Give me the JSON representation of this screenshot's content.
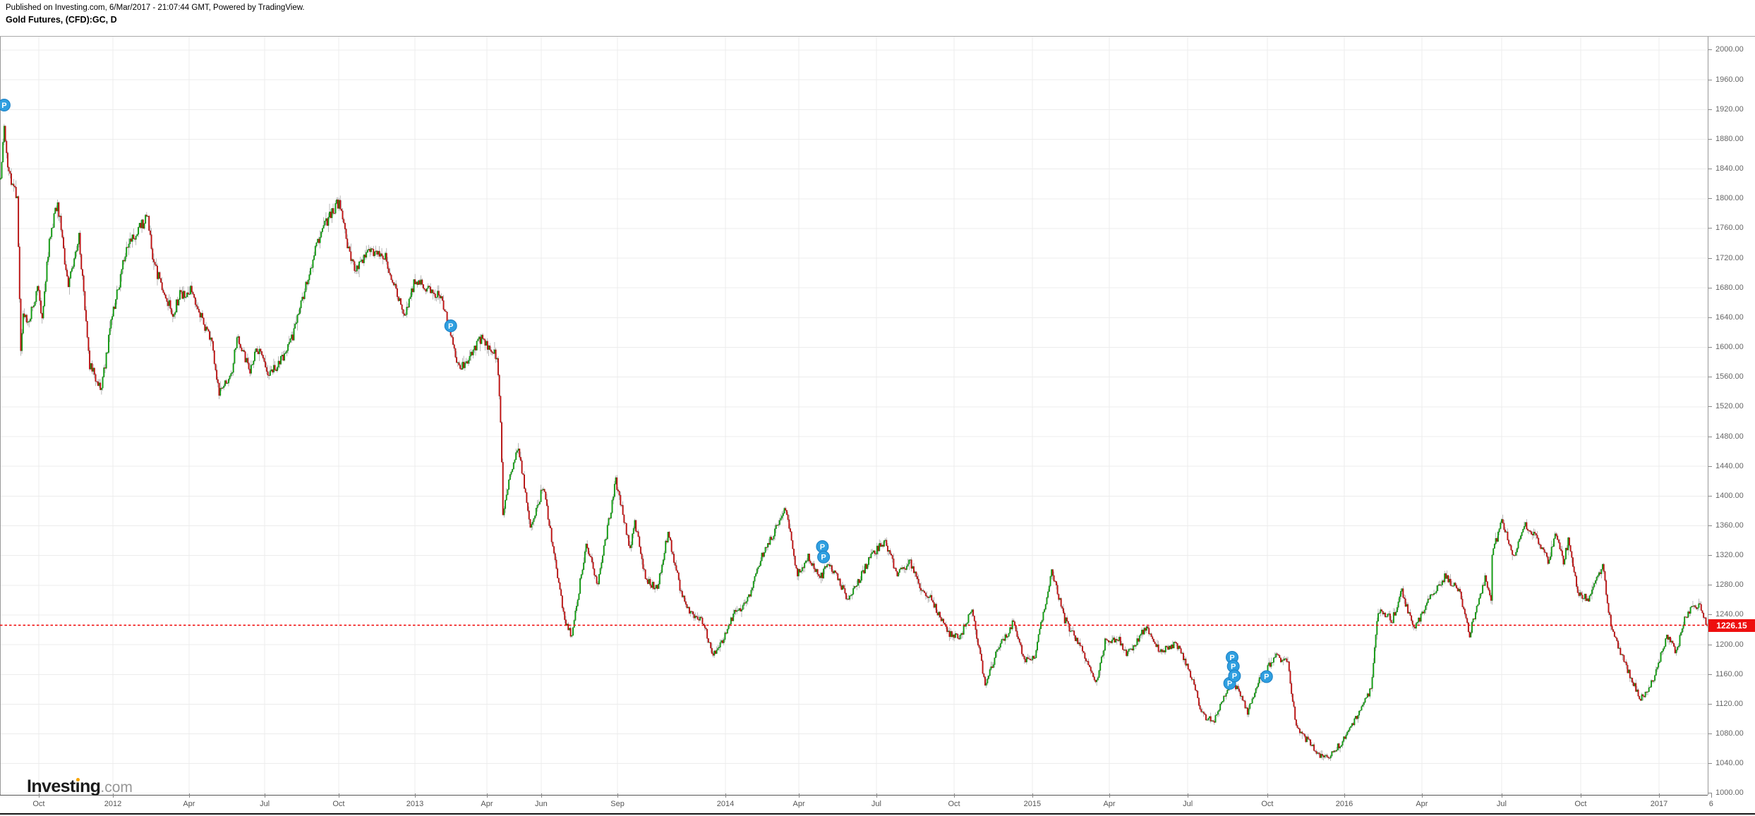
{
  "header": {
    "published_line": "Published on Investing.com, 6/Mar/2017 - 21:07:44 GMT, Powered by TradingView.",
    "instrument_line": "Gold Futures, (CFD):GC, D"
  },
  "logo": {
    "brand_part1": "Invest",
    "brand_i": "i",
    "brand_part2": "ng",
    "tld": ".com"
  },
  "colors": {
    "up": "#0fae0f",
    "up_border": "#0a6e0a",
    "down": "#d41111",
    "down_border": "#8a0b0b",
    "wick": "#999999",
    "grid": "#ececec",
    "plot_border": "#999999",
    "axis_text": "#666666",
    "last_price": "#f00000",
    "badge_bg": "#ee0f0f",
    "marker": "#2f9fe0",
    "marker_border": "#1a7fc4",
    "logo_dot": "#f7a400"
  },
  "chart_data": {
    "type": "candlestick",
    "title": "Gold Futures, (CFD):GC, D",
    "symbol": "(CFD):GC",
    "interval": "D",
    "legend_position": "none",
    "grid": true,
    "last_price": 1226.15,
    "last_price_label": "1226.15",
    "y_axis": {
      "min": 1000,
      "max": 2000,
      "step": 40,
      "plot_top_price": 2018,
      "plot_bottom_price": 998,
      "tick_labels": [
        "2000.00",
        "1960.00",
        "1920.00",
        "1880.00",
        "1840.00",
        "1800.00",
        "1760.00",
        "1720.00",
        "1680.00",
        "1640.00",
        "1600.00",
        "1560.00",
        "1520.00",
        "1480.00",
        "1440.00",
        "1400.00",
        "1360.00",
        "1320.00",
        "1280.00",
        "1240.00",
        "1200.00",
        "1160.00",
        "1120.00",
        "1080.00",
        "1040.00",
        "1000.00"
      ]
    },
    "time_range": {
      "start": "2011-09-01",
      "end": "2017-03-06"
    },
    "x_ticks": [
      {
        "label": "Oct",
        "x": 0.0227
      },
      {
        "label": "2012",
        "x": 0.0661
      },
      {
        "label": "Apr",
        "x": 0.1107
      },
      {
        "label": "Jul",
        "x": 0.155
      },
      {
        "label": "Oct",
        "x": 0.1983
      },
      {
        "label": "2013",
        "x": 0.243
      },
      {
        "label": "Apr",
        "x": 0.2851
      },
      {
        "label": "Jun",
        "x": 0.3169
      },
      {
        "label": "Sep",
        "x": 0.3616
      },
      {
        "label": "2014",
        "x": 0.4248
      },
      {
        "label": "Apr",
        "x": 0.4678
      },
      {
        "label": "Jul",
        "x": 0.5132
      },
      {
        "label": "Oct",
        "x": 0.5587
      },
      {
        "label": "2015",
        "x": 0.6045
      },
      {
        "label": "Apr",
        "x": 0.6496
      },
      {
        "label": "Jul",
        "x": 0.6955
      },
      {
        "label": "Oct",
        "x": 0.7421
      },
      {
        "label": "2016",
        "x": 0.7872
      },
      {
        "label": "Apr",
        "x": 0.8326
      },
      {
        "label": "Jul",
        "x": 0.8793
      },
      {
        "label": "Oct",
        "x": 0.9256
      },
      {
        "label": "2017",
        "x": 0.9715
      },
      {
        "label": "6",
        "x": 1.002
      }
    ],
    "price_path": [
      [
        "2011-09-01",
        1826
      ],
      [
        "2011-09-06",
        1900
      ],
      [
        "2011-09-08",
        1856
      ],
      [
        "2011-09-14",
        1822
      ],
      [
        "2011-09-21",
        1805
      ],
      [
        "2011-09-23",
        1660
      ],
      [
        "2011-09-26",
        1595
      ],
      [
        "2011-09-28",
        1650
      ],
      [
        "2011-10-04",
        1630
      ],
      [
        "2011-10-14",
        1680
      ],
      [
        "2011-10-20",
        1640
      ],
      [
        "2011-10-28",
        1745
      ],
      [
        "2011-11-08",
        1795
      ],
      [
        "2011-11-21",
        1680
      ],
      [
        "2011-12-02",
        1750
      ],
      [
        "2011-12-15",
        1575
      ],
      [
        "2011-12-29",
        1546
      ],
      [
        "2012-01-10",
        1632
      ],
      [
        "2012-01-27",
        1735
      ],
      [
        "2012-02-22",
        1776
      ],
      [
        "2012-02-29",
        1710
      ],
      [
        "2012-03-13",
        1676
      ],
      [
        "2012-03-22",
        1645
      ],
      [
        "2012-03-30",
        1670
      ],
      [
        "2012-04-12",
        1676
      ],
      [
        "2012-04-25",
        1640
      ],
      [
        "2012-05-08",
        1604
      ],
      [
        "2012-05-16",
        1540
      ],
      [
        "2012-05-31",
        1562
      ],
      [
        "2012-06-06",
        1620
      ],
      [
        "2012-06-21",
        1566
      ],
      [
        "2012-06-29",
        1600
      ],
      [
        "2012-07-12",
        1566
      ],
      [
        "2012-07-25",
        1576
      ],
      [
        "2012-08-10",
        1615
      ],
      [
        "2012-08-23",
        1670
      ],
      [
        "2012-09-07",
        1736
      ],
      [
        "2012-09-21",
        1775
      ],
      [
        "2012-10-04",
        1796
      ],
      [
        "2012-10-15",
        1736
      ],
      [
        "2012-10-24",
        1702
      ],
      [
        "2012-11-09",
        1732
      ],
      [
        "2012-11-28",
        1720
      ],
      [
        "2012-12-05",
        1694
      ],
      [
        "2012-12-20",
        1646
      ],
      [
        "2013-01-02",
        1690
      ],
      [
        "2013-01-17",
        1680
      ],
      [
        "2013-02-01",
        1665
      ],
      [
        "2013-02-15",
        1608
      ],
      [
        "2013-02-21",
        1578
      ],
      [
        "2013-03-01",
        1575
      ],
      [
        "2013-03-21",
        1614
      ],
      [
        "2013-04-09",
        1586
      ],
      [
        "2013-04-12",
        1500
      ],
      [
        "2013-04-16",
        1380
      ],
      [
        "2013-04-23",
        1420
      ],
      [
        "2013-05-03",
        1465
      ],
      [
        "2013-05-17",
        1360
      ],
      [
        "2013-06-03",
        1412
      ],
      [
        "2013-06-20",
        1285
      ],
      [
        "2013-06-27",
        1230
      ],
      [
        "2013-07-05",
        1213
      ],
      [
        "2013-07-23",
        1335
      ],
      [
        "2013-08-06",
        1282
      ],
      [
        "2013-08-27",
        1420
      ],
      [
        "2013-09-12",
        1330
      ],
      [
        "2013-09-18",
        1366
      ],
      [
        "2013-10-01",
        1288
      ],
      [
        "2013-10-15",
        1275
      ],
      [
        "2013-10-28",
        1352
      ],
      [
        "2013-11-12",
        1270
      ],
      [
        "2013-11-25",
        1240
      ],
      [
        "2013-12-06",
        1230
      ],
      [
        "2013-12-19",
        1188
      ],
      [
        "2013-12-31",
        1205
      ],
      [
        "2014-01-14",
        1245
      ],
      [
        "2014-01-28",
        1255
      ],
      [
        "2014-02-14",
        1320
      ],
      [
        "2014-03-14",
        1382
      ],
      [
        "2014-03-28",
        1294
      ],
      [
        "2014-04-10",
        1320
      ],
      [
        "2014-04-24",
        1290
      ],
      [
        "2014-05-06",
        1310
      ],
      [
        "2014-05-28",
        1260
      ],
      [
        "2014-06-24",
        1320
      ],
      [
        "2014-07-10",
        1340
      ],
      [
        "2014-07-24",
        1295
      ],
      [
        "2014-08-08",
        1310
      ],
      [
        "2014-08-21",
        1277
      ],
      [
        "2014-09-02",
        1265
      ],
      [
        "2014-09-22",
        1218
      ],
      [
        "2014-10-06",
        1207
      ],
      [
        "2014-10-21",
        1250
      ],
      [
        "2014-11-05",
        1145
      ],
      [
        "2014-11-21",
        1200
      ],
      [
        "2014-12-01",
        1212
      ],
      [
        "2014-12-09",
        1232
      ],
      [
        "2014-12-22",
        1178
      ],
      [
        "2015-01-02",
        1186
      ],
      [
        "2015-01-22",
        1300
      ],
      [
        "2015-02-06",
        1234
      ],
      [
        "2015-02-24",
        1200
      ],
      [
        "2015-03-17",
        1150
      ],
      [
        "2015-03-26",
        1205
      ],
      [
        "2015-04-10",
        1208
      ],
      [
        "2015-04-22",
        1187
      ],
      [
        "2015-05-14",
        1225
      ],
      [
        "2015-05-29",
        1190
      ],
      [
        "2015-06-18",
        1202
      ],
      [
        "2015-07-07",
        1155
      ],
      [
        "2015-07-20",
        1106
      ],
      [
        "2015-07-31",
        1096
      ],
      [
        "2015-08-12",
        1125
      ],
      [
        "2015-08-24",
        1155
      ],
      [
        "2015-09-10",
        1110
      ],
      [
        "2015-09-24",
        1154
      ],
      [
        "2015-10-14",
        1184
      ],
      [
        "2015-10-28",
        1176
      ],
      [
        "2015-11-06",
        1088
      ],
      [
        "2015-11-23",
        1068
      ],
      [
        "2015-12-03",
        1050
      ],
      [
        "2015-12-17",
        1050
      ],
      [
        "2016-01-04",
        1075
      ],
      [
        "2016-01-26",
        1120
      ],
      [
        "2016-02-03",
        1140
      ],
      [
        "2016-02-11",
        1246
      ],
      [
        "2016-02-29",
        1234
      ],
      [
        "2016-03-10",
        1272
      ],
      [
        "2016-03-24",
        1220
      ],
      [
        "2016-04-12",
        1260
      ],
      [
        "2016-04-29",
        1292
      ],
      [
        "2016-05-17",
        1274
      ],
      [
        "2016-05-30",
        1215
      ],
      [
        "2016-06-16",
        1290
      ],
      [
        "2016-06-23",
        1256
      ],
      [
        "2016-06-24",
        1322
      ],
      [
        "2016-07-06",
        1366
      ],
      [
        "2016-07-20",
        1320
      ],
      [
        "2016-08-02",
        1364
      ],
      [
        "2016-08-16",
        1345
      ],
      [
        "2016-08-31",
        1310
      ],
      [
        "2016-09-07",
        1350
      ],
      [
        "2016-09-16",
        1310
      ],
      [
        "2016-09-22",
        1340
      ],
      [
        "2016-10-04",
        1270
      ],
      [
        "2016-10-18",
        1262
      ],
      [
        "2016-11-02",
        1306
      ],
      [
        "2016-11-11",
        1225
      ],
      [
        "2016-11-23",
        1190
      ],
      [
        "2016-12-15",
        1128
      ],
      [
        "2016-12-22",
        1132
      ],
      [
        "2017-01-03",
        1160
      ],
      [
        "2017-01-17",
        1213
      ],
      [
        "2017-01-27",
        1190
      ],
      [
        "2017-02-08",
        1240
      ],
      [
        "2017-02-24",
        1257
      ],
      [
        "2017-03-02",
        1233
      ],
      [
        "2017-03-06",
        1226.15
      ]
    ],
    "marker_label": "P",
    "markers": [
      [
        "2011-09-06",
        1926
      ],
      [
        "2013-02-13",
        1629
      ],
      [
        "2014-04-28",
        1332
      ],
      [
        "2014-04-29",
        1318
      ],
      [
        "2015-08-20",
        1148
      ],
      [
        "2015-08-24",
        1183
      ],
      [
        "2015-08-25",
        1171
      ],
      [
        "2015-08-26",
        1158
      ],
      [
        "2015-10-02",
        1157
      ]
    ]
  }
}
